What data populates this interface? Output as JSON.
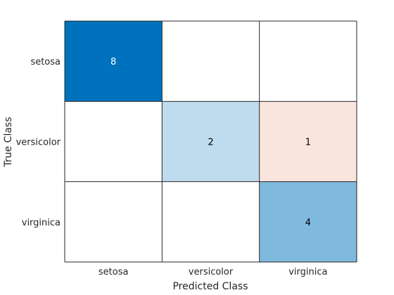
{
  "chart_data": {
    "type": "heatmap",
    "subtype": "confusion-matrix",
    "xlabel": "Predicted Class",
    "ylabel": "True Class",
    "row_labels": [
      "setosa",
      "versicolor",
      "virginica"
    ],
    "col_labels": [
      "setosa",
      "versicolor",
      "virginica"
    ],
    "values": [
      [
        8,
        null,
        null
      ],
      [
        null,
        2,
        1
      ],
      [
        null,
        null,
        4
      ]
    ],
    "colors": {
      "correct_scale_max": "#0072bd",
      "incorrect_scale_max": "#d95319",
      "grid": "#262626",
      "empty": "#ffffff",
      "dark_text": "#000000",
      "light_text": "#ffffff"
    }
  }
}
